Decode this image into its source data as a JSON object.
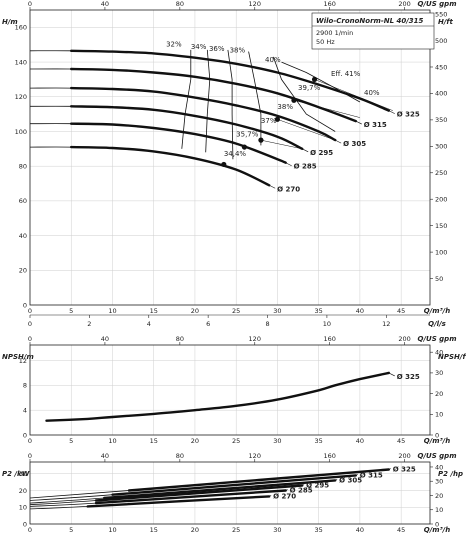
{
  "header": {
    "title": "Wilo-CronoNorm-NL 40/315",
    "speed": "2900 1/min",
    "frequency": "50 Hz"
  },
  "chart_data": [
    {
      "type": "line",
      "name": "head",
      "xlabel": "Q/m³/h",
      "ylabel_left": "H/m",
      "ylabel_right": "H/ft",
      "top_axis_label": "Q/US gpm",
      "x_ticks": [
        "0",
        "5",
        "10",
        "15",
        "20",
        "25",
        "30",
        "35",
        "40",
        "45"
      ],
      "y_ticks": [
        "0",
        "20",
        "40",
        "60",
        "80",
        "100",
        "120",
        "140",
        "160"
      ],
      "y2_ticks": [
        "50",
        "100",
        "150",
        "200",
        "250",
        "300",
        "350",
        "400",
        "450",
        "500",
        "550"
      ],
      "top_ticks": [
        "0",
        "40",
        "80",
        "120",
        "160",
        "200"
      ],
      "xlim": [
        0,
        48.5
      ],
      "ylim": [
        0,
        170
      ],
      "grid": true,
      "series": [
        {
          "name": "Ø 325",
          "x": [
            0,
            5,
            10,
            15,
            20,
            25,
            30,
            35,
            40,
            43.5
          ],
          "y": [
            146.5,
            146.5,
            146,
            145,
            142.5,
            139,
            134,
            127,
            119,
            112
          ]
        },
        {
          "name": "Ø 315",
          "x": [
            0,
            5,
            10,
            15,
            20,
            25,
            30,
            35,
            39.5
          ],
          "y": [
            136,
            136,
            135.5,
            134,
            131.5,
            127.5,
            122,
            114,
            106
          ]
        },
        {
          "name": "Ø 305",
          "x": [
            0,
            5,
            10,
            15,
            20,
            25,
            30,
            35,
            37
          ],
          "y": [
            125,
            125,
            124.5,
            123,
            119.5,
            115,
            109,
            100,
            95
          ]
        },
        {
          "name": "Ø 295",
          "x": [
            0,
            5,
            10,
            15,
            20,
            25,
            30,
            33
          ],
          "y": [
            114.5,
            114.5,
            114,
            112.5,
            109,
            104,
            97,
            90
          ]
        },
        {
          "name": "Ø 285",
          "x": [
            0,
            5,
            10,
            15,
            20,
            25,
            30,
            31
          ],
          "y": [
            104.5,
            104.5,
            104,
            102,
            98.5,
            93,
            84,
            82
          ]
        },
        {
          "name": "Ø 270",
          "x": [
            0,
            5,
            10,
            15,
            20,
            25,
            29
          ],
          "y": [
            91,
            91,
            90.5,
            88.5,
            84.5,
            78,
            69
          ]
        }
      ],
      "efficiency_labels": [
        "32%",
        "34%",
        "36%",
        "38%",
        "40%",
        "Eff. 41%",
        "39,7%",
        "38%",
        "37%",
        "35,7%",
        "34,4%",
        "40%"
      ],
      "bep_points": [
        {
          "x": 34.5,
          "y": 130
        },
        {
          "x": 32,
          "y": 118
        },
        {
          "x": 30,
          "y": 107
        },
        {
          "x": 28,
          "y": 95
        },
        {
          "x": 26,
          "y": 91
        },
        {
          "x": 23.5,
          "y": 81
        }
      ],
      "x2_ticks": [
        "0",
        "2",
        "4",
        "6",
        "8",
        "10",
        "12"
      ],
      "x2_label": "Q/l/s"
    },
    {
      "type": "line",
      "name": "npsh",
      "xlabel": "Q/m³/h",
      "ylabel_left": "NPSH/m",
      "ylabel_right": "NPSH/ft",
      "top_axis_label": "Q/US gpm",
      "x_ticks": [
        "0",
        "5",
        "10",
        "15",
        "20",
        "25",
        "30",
        "35",
        "40",
        "45"
      ],
      "y_ticks": [
        "0",
        "4",
        "8",
        "12"
      ],
      "y2_ticks": [
        "0",
        "10",
        "20",
        "30",
        "40"
      ],
      "top_ticks": [
        "0",
        "40",
        "80",
        "120",
        "160",
        "200"
      ],
      "xlim": [
        0,
        48.5
      ],
      "ylim": [
        0,
        14.5
      ],
      "grid": true,
      "series": [
        {
          "name": "Ø 325",
          "x": [
            2,
            7,
            10,
            15,
            20,
            25,
            30,
            35,
            37,
            40,
            43.5
          ],
          "y": [
            2.3,
            2.6,
            2.9,
            3.4,
            4,
            4.7,
            5.7,
            7.2,
            8,
            9,
            10
          ]
        }
      ]
    },
    {
      "type": "line",
      "name": "power",
      "xlabel": "Q/m³/h",
      "ylabel_left": "P2 /kW",
      "ylabel_right": "P2 /hp",
      "top_axis_label": "Q/US gpm",
      "x_ticks": [
        "0",
        "5",
        "10",
        "15",
        "20",
        "25",
        "30",
        "35",
        "40",
        "45"
      ],
      "y_ticks": [
        "0",
        "10",
        "20",
        "30"
      ],
      "y2_ticks": [
        "0",
        "10",
        "20",
        "30",
        "40"
      ],
      "top_ticks": [
        "0",
        "40",
        "80",
        "120",
        "160",
        "200"
      ],
      "xlim": [
        0,
        48.5
      ],
      "ylim": [
        0,
        37
      ],
      "grid": true,
      "series": [
        {
          "name": "Ø 325",
          "x": [
            0,
            12,
            43.5
          ],
          "y": [
            15.5,
            20,
            32.5
          ]
        },
        {
          "name": "Ø 315",
          "x": [
            0,
            10,
            39.5
          ],
          "y": [
            14,
            17.5,
            29
          ]
        },
        {
          "name": "Ø 305",
          "x": [
            0,
            9,
            37
          ],
          "y": [
            12.5,
            15.5,
            26
          ]
        },
        {
          "name": "Ø 295",
          "x": [
            0,
            8,
            33
          ],
          "y": [
            11.5,
            14,
            23
          ]
        },
        {
          "name": "Ø 285",
          "x": [
            0,
            8,
            31
          ],
          "y": [
            10.5,
            12.5,
            20
          ]
        },
        {
          "name": "Ø 270",
          "x": [
            0,
            7,
            29
          ],
          "y": [
            9,
            10.5,
            16.5
          ]
        }
      ]
    }
  ]
}
